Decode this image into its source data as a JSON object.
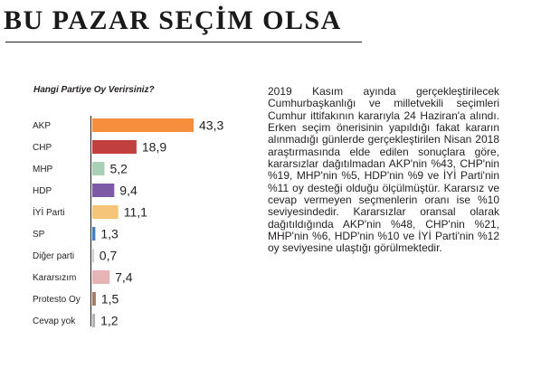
{
  "header": {
    "title": "BU PAZAR SEÇİM OLSA"
  },
  "chart_data": {
    "type": "bar",
    "orientation": "horizontal",
    "title": "Hangi Partiye Oy Verirsiniz?",
    "categories": [
      "AKP",
      "CHP",
      "MHP",
      "HDP",
      "İYİ Parti",
      "SP",
      "Diğer parti",
      "Kararsızım",
      "Protesto Oy",
      "Cevap yok"
    ],
    "values": [
      43.3,
      18.9,
      5.2,
      9.4,
      11.1,
      1.3,
      0.7,
      7.4,
      1.5,
      1.2
    ],
    "value_labels": [
      "43,3",
      "18,9",
      "5,2",
      "9,4",
      "11,1",
      "1,3",
      "0,7",
      "7,4",
      "1,5",
      "1,2"
    ],
    "colors": [
      "#f58f3d",
      "#c1403e",
      "#a9cfb4",
      "#7e5aa6",
      "#f5c57a",
      "#3f7fc0",
      "#c8c8c8",
      "#e6b4b4",
      "#a37a65",
      "#b2b2b2"
    ],
    "xlim": [
      0,
      43.3
    ],
    "grid": false,
    "legend": "none"
  },
  "article": {
    "text": "2019 Kasım ayında gerçekleştirilecek Cumhurbaşkanlığı ve milletvekili seçimleri Cumhur ittifakının kararıyla 24 Haziran'a alındı. Erken seçim önerisinin yapıldığı fakat kararın alınmadığı günlerde gerçekleştirilen Nisan 2018 araştırmasında elde edilen sonuçlara göre, kararsızlar dağıtılmadan AKP'nin %43, CHP'nin %19, MHP'nin %5, HDP'nin %9 ve İYİ Parti'nin %11 oy desteği olduğu ölçülmüştür. Kararsız ve cevap vermeyen seçmenlerin oranı ise %10 seviyesindedir. Kararsızlar oransal olarak dağıtıldığında AKP'nin %48, CHP'nin %21, MHP'nin %6, HDP'nin %10 ve İYİ Parti'nin %12 oy seviyesine ulaştığı görülmektedir."
  }
}
